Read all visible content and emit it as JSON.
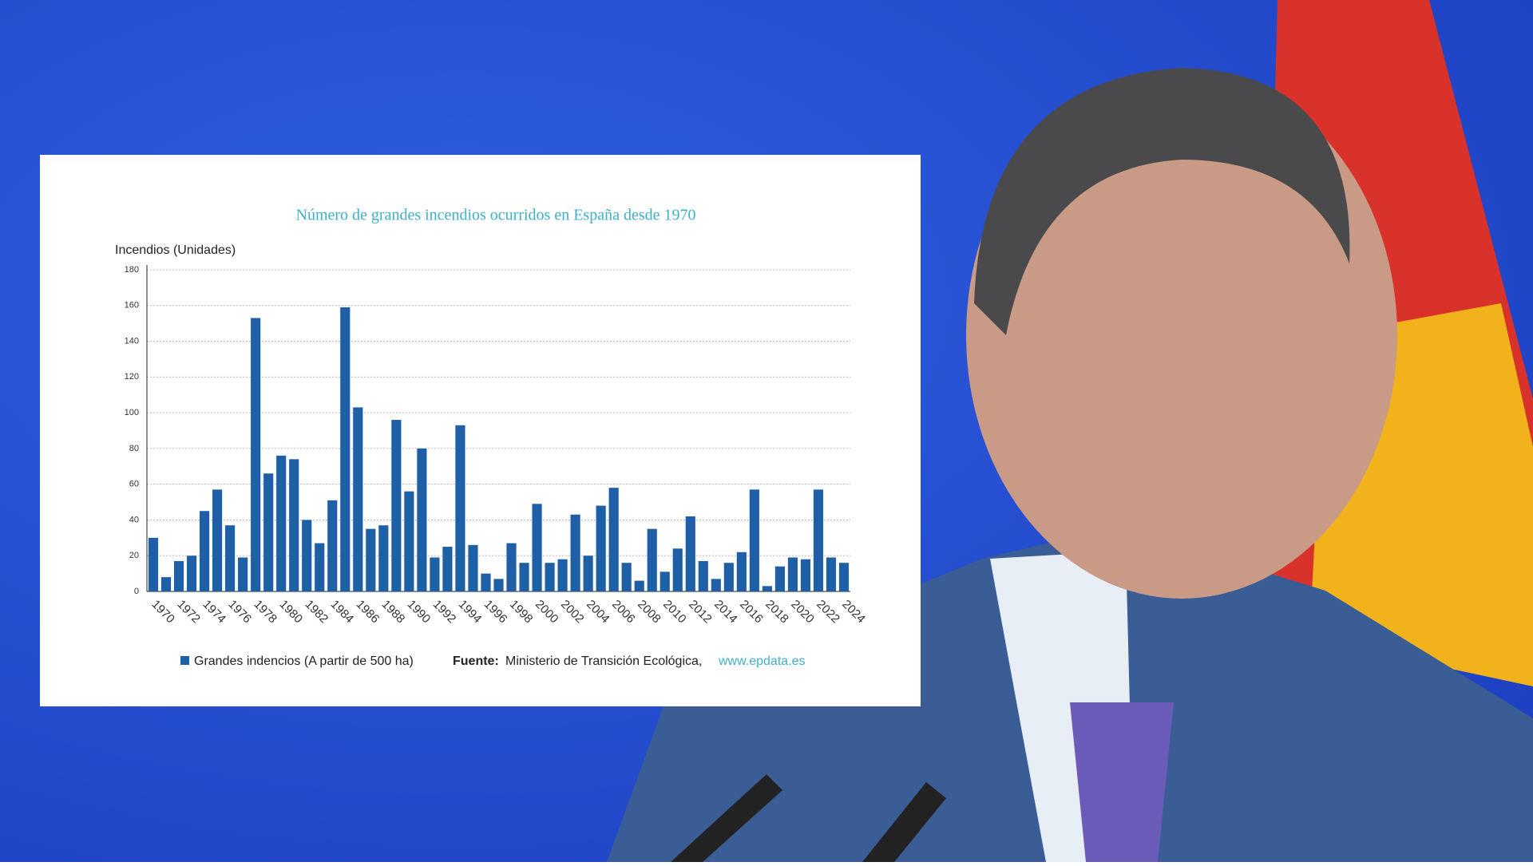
{
  "chart_data": {
    "type": "bar",
    "title": "Número de grandes incendios ocurridos en España desde 1970",
    "y_label": "Incendios (Unidades)",
    "categories": [
      "1970",
      null,
      "1972",
      null,
      "1974",
      null,
      "1976",
      null,
      "1978",
      null,
      "1980",
      null,
      "1982",
      null,
      "1984",
      null,
      "1986",
      null,
      "1988",
      null,
      "1990",
      null,
      "1992",
      null,
      "1994",
      null,
      "1996",
      null,
      "1998",
      null,
      "2000",
      null,
      "2002",
      null,
      "2004",
      null,
      "2006",
      null,
      "2008",
      null,
      "2010",
      null,
      "2012",
      null,
      "2014",
      null,
      "2016",
      null,
      "2018",
      null,
      "2020",
      null,
      "2022",
      null,
      "2024"
    ],
    "series": [
      {
        "name": "Grandes indencios (A partir de 500 ha)",
        "color": "#1f5fa6",
        "values": [
          30,
          8,
          17,
          20,
          45,
          57,
          37,
          19,
          153,
          66,
          76,
          74,
          40,
          27,
          51,
          159,
          103,
          35,
          37,
          96,
          56,
          80,
          19,
          25,
          93,
          26,
          10,
          7,
          27,
          16,
          49,
          16,
          18,
          43,
          20,
          48,
          58,
          16,
          6,
          35,
          11,
          24,
          42,
          17,
          7,
          16,
          22,
          57,
          3,
          14,
          19,
          18,
          57,
          19,
          16
        ]
      }
    ],
    "ylim": [
      0,
      180
    ],
    "yticks": [
      0,
      20,
      40,
      60,
      80,
      100,
      120,
      140,
      160,
      180
    ],
    "grid": true,
    "source": {
      "label": "Fuente:",
      "text": "Ministerio de Transición Ecológica,",
      "url": "www.epdata.es"
    }
  }
}
